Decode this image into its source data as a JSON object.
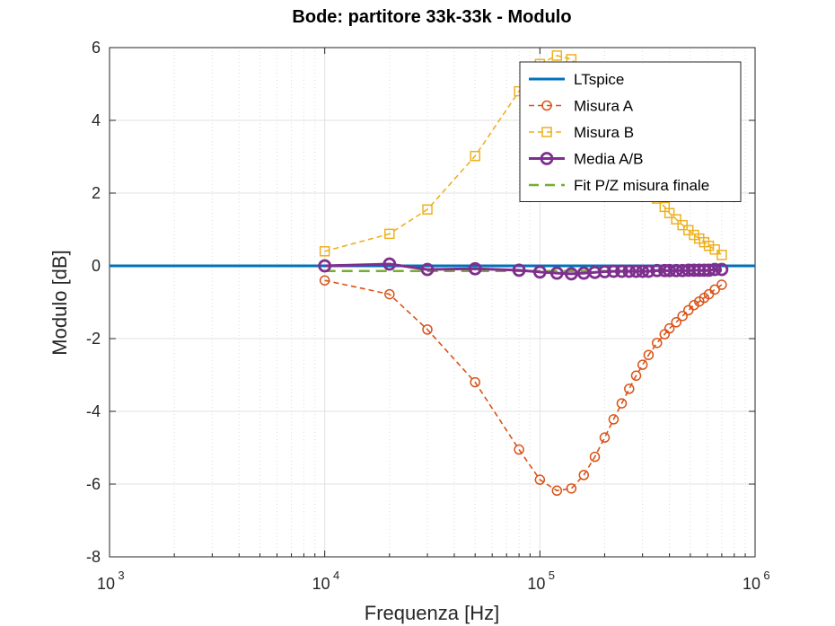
{
  "chart_data": {
    "type": "line",
    "title": "Bode: partitore 33k-33k - Modulo",
    "xlabel": "Frequenza [Hz]",
    "ylabel": "Modulo [dB]",
    "xscale": "log",
    "xlim": [
      1000,
      1000000
    ],
    "ylim": [
      -8,
      6
    ],
    "grid": true,
    "legend_position": "top-right",
    "x_ticks": [
      {
        "base": "10",
        "exp": "3",
        "value": 1000
      },
      {
        "base": "10",
        "exp": "4",
        "value": 10000
      },
      {
        "base": "10",
        "exp": "5",
        "value": 100000
      },
      {
        "base": "10",
        "exp": "6",
        "value": 1000000
      }
    ],
    "y_ticks": [
      "-8",
      "-6",
      "-4",
      "-2",
      "0",
      "2",
      "4",
      "6"
    ],
    "series": [
      {
        "name": "LTspice",
        "color": "#0072BD",
        "style": "solid",
        "marker": "none",
        "x": [
          1000,
          1000000
        ],
        "y": [
          0,
          0
        ]
      },
      {
        "name": "Misura A",
        "color": "#D95319",
        "style": "dashed",
        "marker": "circle",
        "x": [
          10000,
          20000,
          30000,
          50000,
          80000,
          100000,
          120000,
          140000,
          160000,
          180000,
          200000,
          220000,
          240000,
          260000,
          280000,
          300000,
          320000,
          350000,
          380000,
          400000,
          430000,
          460000,
          490000,
          520000,
          550000,
          580000,
          610000,
          650000,
          700000
        ],
        "y": [
          -0.4,
          -0.78,
          -1.75,
          -3.2,
          -5.05,
          -5.88,
          -6.18,
          -6.12,
          -5.75,
          -5.25,
          -4.72,
          -4.22,
          -3.78,
          -3.38,
          -3.02,
          -2.72,
          -2.45,
          -2.12,
          -1.88,
          -1.72,
          -1.55,
          -1.38,
          -1.22,
          -1.08,
          -0.98,
          -0.88,
          -0.78,
          -0.65,
          -0.52
        ]
      },
      {
        "name": "Misura B",
        "color": "#EDB120",
        "style": "dashed",
        "marker": "square",
        "x": [
          10000,
          20000,
          30000,
          50000,
          80000,
          100000,
          120000,
          140000,
          160000,
          180000,
          200000,
          220000,
          240000,
          260000,
          280000,
          300000,
          320000,
          350000,
          380000,
          400000,
          430000,
          460000,
          490000,
          520000,
          550000,
          580000,
          610000,
          650000,
          700000
        ],
        "y": [
          0.4,
          0.88,
          1.55,
          3.02,
          4.8,
          5.55,
          5.78,
          5.68,
          5.35,
          4.92,
          4.42,
          3.92,
          3.48,
          3.08,
          2.72,
          2.42,
          2.15,
          1.85,
          1.62,
          1.45,
          1.28,
          1.12,
          0.98,
          0.85,
          0.75,
          0.65,
          0.55,
          0.45,
          0.3
        ]
      },
      {
        "name": "Media A/B",
        "color": "#7E2F8E",
        "style": "solid",
        "marker": "circle-bold",
        "x": [
          10000,
          20000,
          30000,
          50000,
          80000,
          100000,
          120000,
          140000,
          160000,
          180000,
          200000,
          220000,
          240000,
          260000,
          280000,
          300000,
          320000,
          350000,
          380000,
          400000,
          430000,
          460000,
          490000,
          520000,
          550000,
          580000,
          610000,
          650000,
          700000
        ],
        "y": [
          0,
          0.05,
          -0.1,
          -0.08,
          -0.12,
          -0.17,
          -0.2,
          -0.22,
          -0.2,
          -0.18,
          -0.16,
          -0.15,
          -0.15,
          -0.15,
          -0.15,
          -0.15,
          -0.15,
          -0.13,
          -0.13,
          -0.13,
          -0.13,
          -0.13,
          -0.12,
          -0.12,
          -0.12,
          -0.12,
          -0.12,
          -0.1,
          -0.1
        ]
      },
      {
        "name": "Fit P/Z misura finale",
        "color": "#77AC30",
        "style": "dashed-thick",
        "marker": "none",
        "x": [
          10000,
          20000,
          30000,
          50000,
          80000,
          100000,
          150000,
          200000,
          300000,
          400000,
          500000,
          600000,
          700000
        ],
        "y": [
          -0.14,
          -0.14,
          -0.14,
          -0.14,
          -0.14,
          -0.14,
          -0.14,
          -0.14,
          -0.14,
          -0.14,
          -0.14,
          -0.14,
          -0.14
        ]
      }
    ]
  }
}
